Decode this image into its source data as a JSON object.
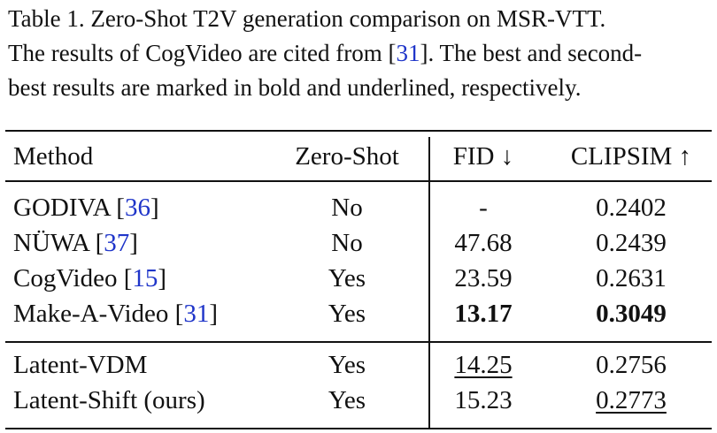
{
  "caption": {
    "line1": "Table 1.  Zero-Shot T2V generation comparison on MSR-VTT.",
    "line2_before": "The results of CogVideo are cited from [",
    "line2_ref": "31",
    "line2_after": "].  The best and second-",
    "line3": "best results are marked in bold and underlined, respectively."
  },
  "table": {
    "headers": {
      "method": "Method",
      "zero_shot": "Zero-Shot",
      "fid": "FID ↓",
      "clipsim": "CLIPSIM ↑"
    },
    "rows": [
      {
        "method": "GODIVA [",
        "ref": "36",
        "close": "]",
        "zero_shot": "No",
        "fid": "-",
        "clipsim": "0.2402"
      },
      {
        "method": "NÜWA [",
        "ref": "37",
        "close": "]",
        "zero_shot": "No",
        "fid": "47.68",
        "clipsim": "0.2439"
      },
      {
        "method": "CogVideo [",
        "ref": "15",
        "close": "]",
        "zero_shot": "Yes",
        "fid": "23.59",
        "clipsim": "0.2631"
      },
      {
        "method": "Make-A-Video [",
        "ref": "31",
        "close": "]",
        "zero_shot": "Yes",
        "fid": "13.17",
        "clipsim": "0.3049"
      },
      {
        "method": "Latent-VDM",
        "ref": "",
        "close": "",
        "zero_shot": "Yes",
        "fid": "14.25",
        "clipsim": "0.2756"
      },
      {
        "method": "Latent-Shift (ours)",
        "ref": "",
        "close": "",
        "zero_shot": "Yes",
        "fid": "15.23",
        "clipsim": "0.2773"
      }
    ]
  },
  "colors": {
    "text": "#111111",
    "reference_link": "#1f35c9"
  }
}
